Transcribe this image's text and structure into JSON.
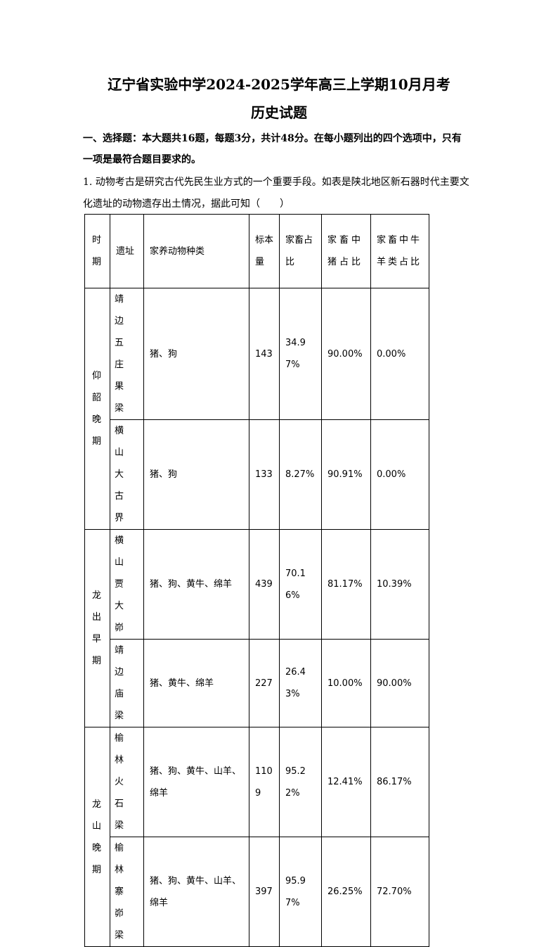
{
  "title": "辽宁省实验中学2024-2025学年高三上学期10月月考",
  "subtitle": "历史试题",
  "section_heading_line1": "一、选择题：本大题共16题，每题3分，共计48分。在每小题列出的四个选项中，只有",
  "section_heading_line2": "一项是最符合题目要求的。",
  "question_line1": "1. 动物考古是研究古代先民生业方式的一个重要手段。如表是陕北地区新石器时代主要文",
  "question_line2": "化遗址的动物遗存出土情况，据此可知（　　）",
  "table": {
    "headers": [
      "时期",
      "遗址",
      "家养动物种类",
      "标本量",
      "家畜占比",
      "家畜中猪占比",
      "家畜中牛羊类占比"
    ],
    "groups": [
      {
        "period": "仰韶晚期",
        "rows": [
          [
            "靖边五庄果梁",
            "猪、狗",
            "143",
            "34.97%",
            "90.00%",
            "0.00%"
          ],
          [
            "横山大古界",
            "猪、狗",
            "133",
            "8.27%",
            "90.91%",
            "0.00%"
          ]
        ]
      },
      {
        "period": "龙出早期",
        "rows": [
          [
            "横山贾大峁",
            "猪、狗、黄牛、绵羊",
            "439",
            "70.16%",
            "81.17%",
            "10.39%"
          ],
          [
            "靖边庙梁",
            "猪、黄牛、绵羊",
            "227",
            "26.43%",
            "10.00%",
            "90.00%"
          ]
        ]
      },
      {
        "period": "龙山晚期",
        "rows": [
          [
            "榆林火石梁",
            "猪、狗、黄牛、山羊、绵羊",
            "1109",
            "95.22%",
            "12.41%",
            "86.17%"
          ],
          [
            "榆林寨峁梁",
            "猪、狗、黄牛、山羊、绵羊",
            "397",
            "95.97%",
            "26.25%",
            "72.70%"
          ]
        ]
      }
    ]
  }
}
